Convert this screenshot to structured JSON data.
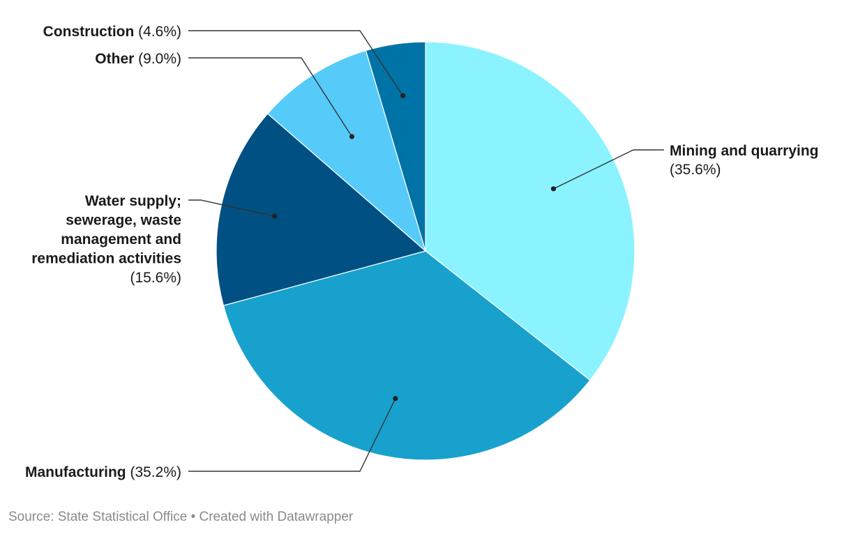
{
  "chart_data": {
    "type": "pie",
    "categories": [
      "Mining and quarrying",
      "Manufacturing",
      "Water supply; sewerage, waste management and remediation activities",
      "Other",
      "Construction"
    ],
    "values": [
      35.6,
      35.2,
      15.6,
      9.0,
      4.6
    ],
    "value_labels": [
      "(35.6%)",
      "(35.2%)",
      "(15.6%)",
      "(9.0%)",
      "(4.6%)"
    ],
    "label_lines": [
      [
        "Mining and quarrying"
      ],
      [
        "Manufacturing"
      ],
      [
        "Water supply;",
        "sewerage, waste",
        "management and",
        "remediation activities"
      ],
      [
        "Other"
      ],
      [
        "Construction"
      ]
    ],
    "colors": [
      "#8af3ff",
      "#18a1cd",
      "#005083",
      "#56cbf9",
      "#0073a6"
    ],
    "start_angle": "12 o'clock",
    "direction": "clockwise",
    "title": ""
  },
  "footer": {
    "source": "Source: State Statistical Office",
    "separator": "•",
    "credit": "Created with Datawrapper"
  }
}
